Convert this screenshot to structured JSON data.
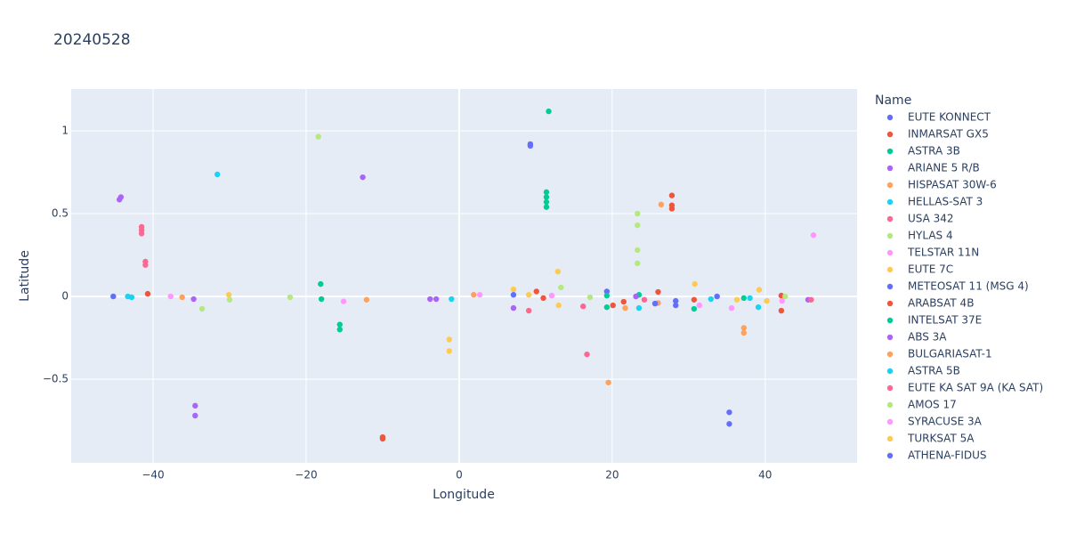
{
  "chart_data": {
    "type": "scatter",
    "title": "20240528",
    "x_label": "Longitude",
    "y_label": "Latitude",
    "legend_title": "Name",
    "xlim": [
      -50.7,
      52.0
    ],
    "ylim": [
      -1.005,
      1.253
    ],
    "xticks": [
      {
        "value": -40,
        "label": "−40"
      },
      {
        "value": -20,
        "label": "−20"
      },
      0,
      20,
      40
    ],
    "yticks": [
      {
        "value": -0.5,
        "label": "−0.5"
      },
      0,
      0.5,
      1
    ],
    "grid": true,
    "legend": "right",
    "series": [
      {
        "name": "EUTE KONNECT",
        "color": "#636efa",
        "x": [
          9.3,
          9.3,
          -45.2
        ],
        "y": [
          0.92,
          0.91,
          0
        ]
      },
      {
        "name": "INMARSAT GX5",
        "color": "#EF553B",
        "x": [
          -10,
          -10,
          27.8,
          27.8,
          27.8,
          20.1,
          21.5,
          30.7,
          42.1
        ],
        "y": [
          -0.86,
          -0.85,
          0.61,
          0.53,
          0.55,
          -0.054,
          -0.032,
          -0.02,
          0.005
        ]
      },
      {
        "name": "ASTRA 3B",
        "color": "#00cc96",
        "x": [
          11.4,
          11.4,
          11.4,
          11.4,
          -15.6,
          -15.6
        ],
        "y": [
          0.63,
          0.6,
          0.57,
          0.54,
          -0.17,
          -0.2
        ]
      },
      {
        "name": "ARIANE 5 R/B",
        "color": "#ab63fa",
        "x": [
          -44.4,
          -44.2,
          -12.6,
          -34.5,
          -34.5
        ],
        "y": [
          0.585,
          0.6,
          0.72,
          -0.66,
          -0.72
        ]
      },
      {
        "name": "HISPASAT 30W-6",
        "color": "#FFA15A",
        "x": [
          26.4,
          19.5,
          37.2,
          37.2,
          -36.2
        ],
        "y": [
          0.555,
          -0.52,
          -0.19,
          -0.22,
          -0.005
        ]
      },
      {
        "name": "HELLAS-SAT 3",
        "color": "#19d3f3",
        "x": [
          -31.6,
          -43.3,
          -42.8
        ],
        "y": [
          0.737,
          0,
          -0.005
        ]
      },
      {
        "name": "USA 342",
        "color": "#FF6692",
        "x": [
          -41.5,
          -41.5,
          -41.5,
          -41,
          -41,
          16.7
        ],
        "y": [
          0.38,
          0.4,
          0.42,
          0.19,
          0.21,
          -0.35
        ]
      },
      {
        "name": "HYLAS 4",
        "color": "#B6E880",
        "x": [
          -18.4,
          23.3,
          23.3,
          23.3,
          23.3,
          -33.6
        ],
        "y": [
          0.965,
          0.43,
          0.5,
          0.2,
          0.28,
          -0.075
        ]
      },
      {
        "name": "TELSTAR 11N",
        "color": "#FF97FF",
        "x": [
          46.3,
          -37.7,
          -15.1
        ],
        "y": [
          0.37,
          0,
          -0.03
        ]
      },
      {
        "name": "EUTE 7C",
        "color": "#FECB52",
        "x": [
          -1.3,
          -1.3,
          12.9,
          30.8
        ],
        "y": [
          -0.26,
          -0.33,
          0.15,
          0.075
        ]
      },
      {
        "name": "METEOSAT 11 (MSG 4)",
        "color": "#636efa",
        "x": [
          35.3,
          35.3,
          33.7,
          19.3
        ],
        "y": [
          -0.7,
          -0.77,
          0,
          0.03
        ]
      },
      {
        "name": "ARABSAT 4B",
        "color": "#EF553B",
        "x": [
          -40.7,
          10.1,
          11,
          26,
          42.1
        ],
        "y": [
          0.016,
          0.03,
          -0.01,
          0.027,
          -0.086
        ]
      },
      {
        "name": "INTELSAT 37E",
        "color": "#00cc96",
        "x": [
          11.7,
          -18.1,
          -18,
          19.3,
          30.7,
          23.5,
          37.2,
          19.3
        ],
        "y": [
          1.118,
          0.075,
          -0.016,
          -0.065,
          -0.075,
          0.01,
          -0.01,
          0.005
        ]
      },
      {
        "name": "ABS 3A",
        "color": "#ab63fa",
        "x": [
          -34.7,
          -3.8,
          -3,
          7.1,
          23.1,
          45.6
        ],
        "y": [
          -0.016,
          -0.016,
          -0.016,
          -0.07,
          0,
          -0.02
        ]
      },
      {
        "name": "BULGARIASAT-1",
        "color": "#FFA15A",
        "x": [
          -12.1,
          1.9,
          21.7,
          26
        ],
        "y": [
          -0.02,
          0.01,
          -0.07,
          -0.04
        ]
      },
      {
        "name": "ASTRA 5B",
        "color": "#19d3f3",
        "x": [
          -1,
          23.5,
          32.9,
          39.1,
          38
        ],
        "y": [
          -0.016,
          -0.07,
          -0.016,
          -0.065,
          -0.01
        ]
      },
      {
        "name": "EUTE KA SAT 9A (KA SAT)",
        "color": "#FF6692",
        "x": [
          9.1,
          16.2,
          24.2,
          46
        ],
        "y": [
          -0.086,
          -0.06,
          -0.02,
          -0.02
        ]
      },
      {
        "name": "AMOS 17",
        "color": "#B6E880",
        "x": [
          -30,
          -22.1,
          13.3,
          17.1,
          42.6
        ],
        "y": [
          -0.02,
          -0.005,
          0.054,
          -0.005,
          0
        ]
      },
      {
        "name": "SYRACUSE 3A",
        "color": "#FF97FF",
        "x": [
          2.7,
          12.1,
          31.4,
          35.6,
          42.2
        ],
        "y": [
          0.01,
          0.005,
          -0.054,
          -0.07,
          -0.027
        ]
      },
      {
        "name": "TURKSAT 5A",
        "color": "#FECB52",
        "x": [
          -30.1,
          7.1,
          9.1,
          13,
          36.3,
          39.2,
          40.2
        ],
        "y": [
          0.01,
          0.043,
          0.01,
          -0.054,
          -0.02,
          0.04,
          -0.027
        ]
      },
      {
        "name": "ATHENA-FIDUS",
        "color": "#636efa",
        "x": [
          25.6,
          28.3,
          28.3,
          7.1
        ],
        "y": [
          -0.043,
          -0.027,
          -0.054,
          0.01
        ]
      }
    ]
  }
}
